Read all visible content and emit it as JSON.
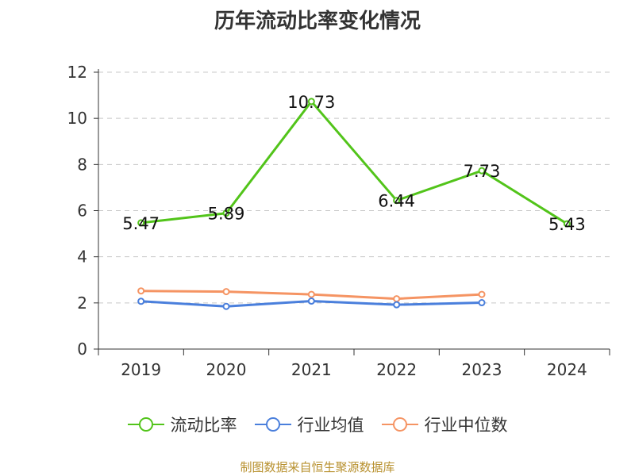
{
  "chart_data": {
    "type": "line",
    "title": "历年流动比率变化情况",
    "categories": [
      "2019",
      "2020",
      "2021",
      "2022",
      "2023",
      "2024"
    ],
    "y_ticks": [
      "0",
      "2",
      "4",
      "6",
      "8",
      "10",
      "12"
    ],
    "ylim": [
      0,
      12
    ],
    "grid": true,
    "legend_position": "bottom",
    "series": [
      {
        "name": "流动比率",
        "color": "#52c41a",
        "values": [
          5.47,
          5.89,
          10.73,
          6.44,
          7.73,
          5.43
        ],
        "labels": [
          "5.47",
          "5.89",
          "10.73",
          "6.44",
          "7.73",
          "5.43"
        ]
      },
      {
        "name": "行业均值",
        "color": "#4a7fdc",
        "values": [
          2.07,
          1.85,
          2.08,
          1.92,
          2.01,
          null
        ]
      },
      {
        "name": "行业中位数",
        "color": "#f59463",
        "values": [
          2.52,
          2.49,
          2.37,
          2.18,
          2.37,
          null
        ]
      }
    ]
  },
  "source": "制图数据来自恒生聚源数据库"
}
